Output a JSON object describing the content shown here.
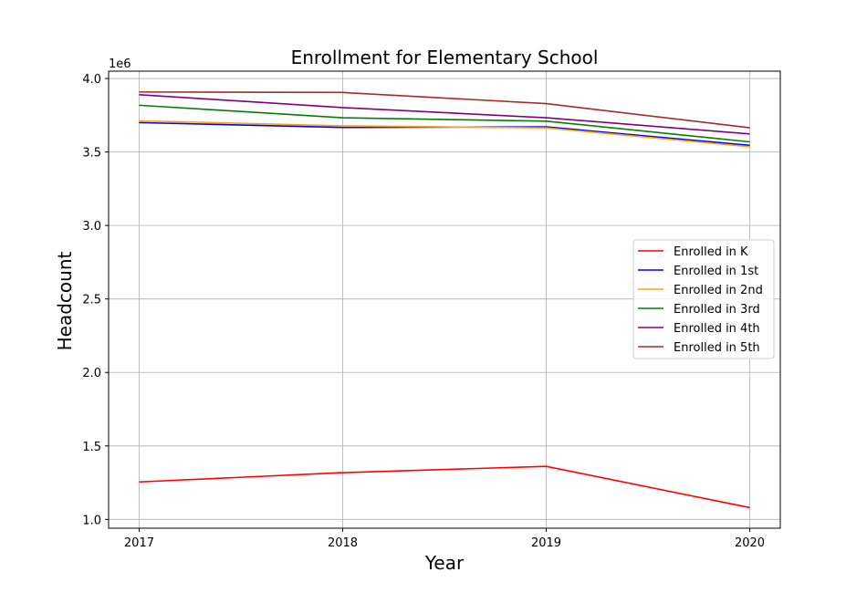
{
  "chart_data": {
    "type": "line",
    "title": "Enrollment for Elementary School",
    "xlabel": "Year",
    "ylabel": "Headcount",
    "y_offset_label": "1e6",
    "x": [
      2017,
      2018,
      2019,
      2020
    ],
    "x_tick_labels": [
      "2017",
      "2018",
      "2019",
      "2020"
    ],
    "y_ticks": [
      1.0,
      1.5,
      2.0,
      2.5,
      3.0,
      3.5,
      4.0
    ],
    "y_tick_labels": [
      "1.0",
      "1.5",
      "2.0",
      "2.5",
      "3.0",
      "3.5",
      "4.0"
    ],
    "xlim": [
      2016.85,
      2020.15
    ],
    "ylim": [
      0.94,
      4.05
    ],
    "y_scale_factor": 1000000,
    "grid": true,
    "legend_position": "center-right",
    "series": [
      {
        "name": "Enrolled in K",
        "color": "#ff0000",
        "values": [
          1255000,
          1318000,
          1361000,
          1080000
        ]
      },
      {
        "name": "Enrolled in 1st",
        "color": "#0000ff",
        "values": [
          3700000,
          3667000,
          3671000,
          3545000
        ]
      },
      {
        "name": "Enrolled in 2nd",
        "color": "#ffa500",
        "values": [
          3712000,
          3678000,
          3664000,
          3536000
        ]
      },
      {
        "name": "Enrolled in 3rd",
        "color": "#008000",
        "values": [
          3818000,
          3733000,
          3710000,
          3569000
        ]
      },
      {
        "name": "Enrolled in 4th",
        "color": "#800080",
        "values": [
          3890000,
          3802000,
          3733000,
          3623000
        ]
      },
      {
        "name": "Enrolled in 5th",
        "color": "#a52a2a",
        "values": [
          3908000,
          3905000,
          3829000,
          3665000
        ]
      }
    ]
  }
}
